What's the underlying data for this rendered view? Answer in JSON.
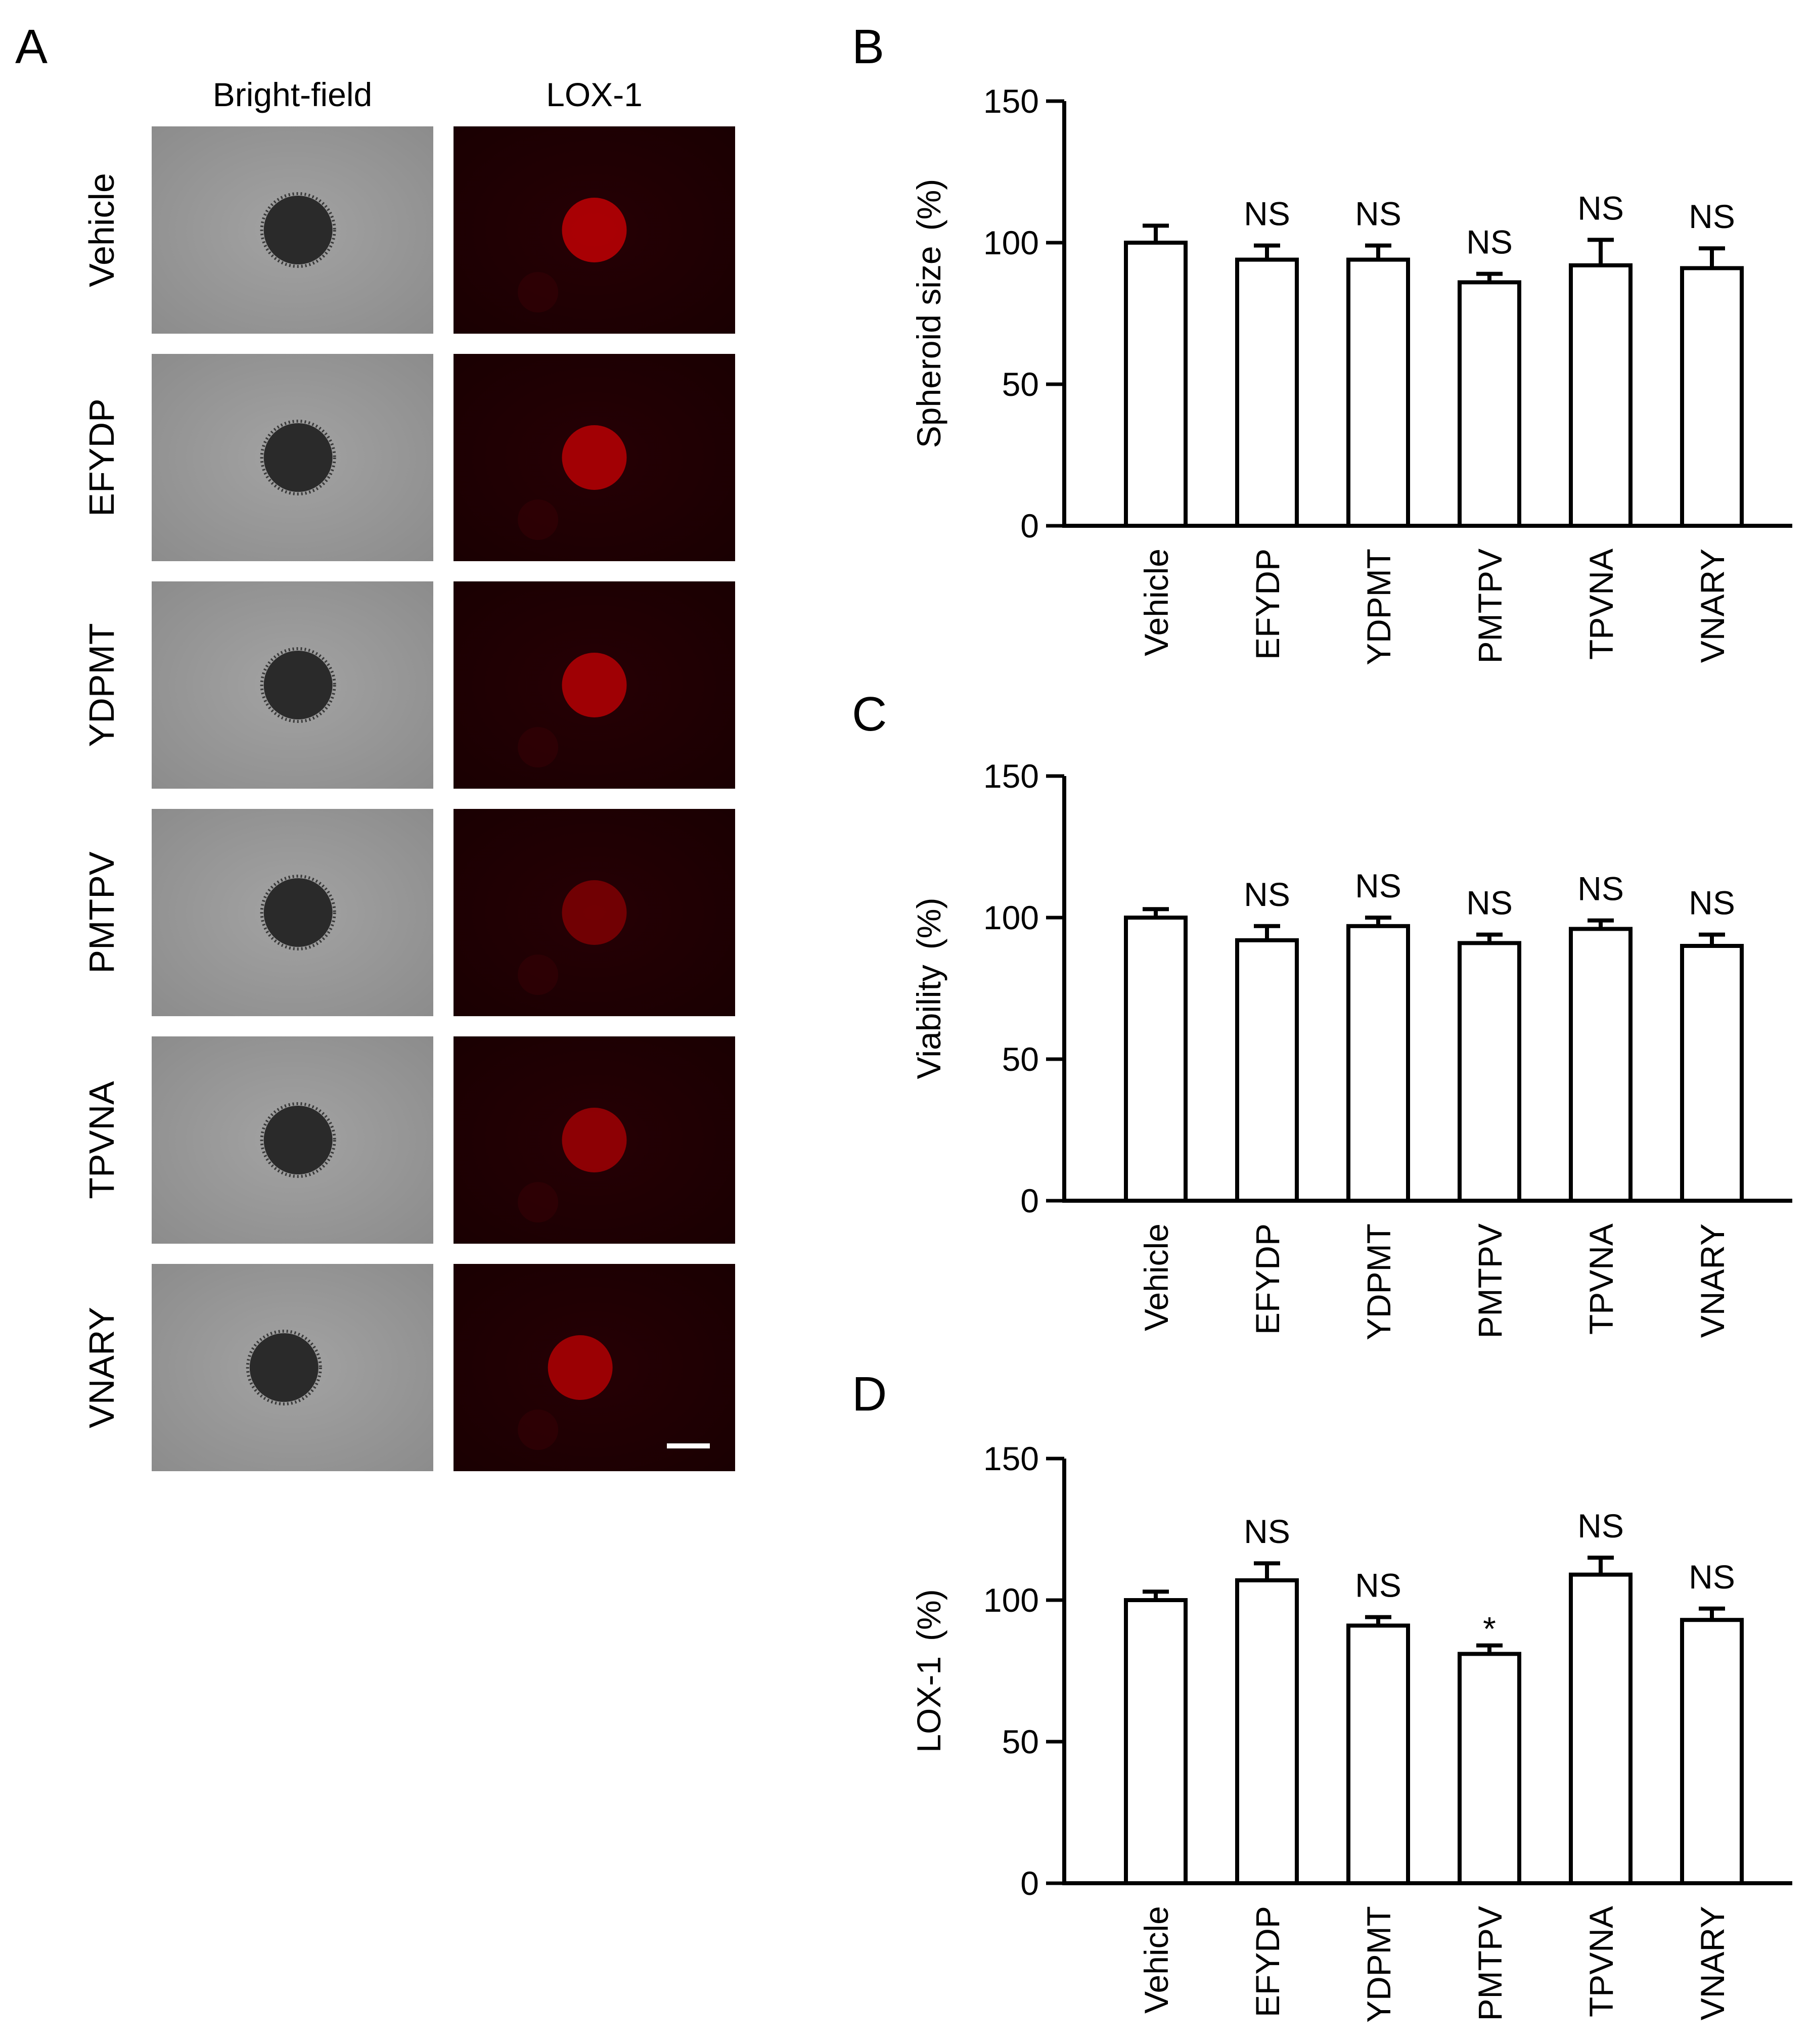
{
  "panel_a": {
    "letter": "A",
    "columns": [
      "Bright-field",
      "LOX-1"
    ],
    "rows": [
      "Vehicle",
      "EFYDP",
      "YDPMT",
      "PMTPV",
      "TPVNA",
      "VNARY"
    ],
    "brightfield_colors": {
      "background": "#8c8c8c",
      "spheroid": "#2a2a2a"
    },
    "fluorescence_colors": {
      "background": "#1a0002",
      "spheroid": "#b00004"
    },
    "spheroid_intensity": [
      0.95,
      0.9,
      0.88,
      0.55,
      0.75,
      0.85
    ],
    "scale_bar_color": "#ffffff"
  },
  "chart_data": [
    {
      "panel": "B",
      "type": "bar",
      "categories": [
        "Vehicle",
        "EFYDP",
        "YDPMT",
        "PMTPV",
        "TPVNA",
        "VNARY"
      ],
      "values": [
        100,
        94,
        94,
        86,
        92,
        91
      ],
      "errors": [
        6,
        5,
        5,
        3,
        9,
        7
      ],
      "annotations": [
        "",
        "NS",
        "NS",
        "NS",
        "NS",
        "NS"
      ],
      "ylabel": "Spheroid size",
      "ylabel_unit": "(%)",
      "ylim": [
        0,
        150
      ],
      "yticks": [
        0,
        50,
        100,
        150
      ],
      "bar_fill": "#ffffff",
      "bar_stroke": "#000000",
      "grid": false
    },
    {
      "panel": "C",
      "type": "bar",
      "categories": [
        "Vehicle",
        "EFYDP",
        "YDPMT",
        "PMTPV",
        "TPVNA",
        "VNARY"
      ],
      "values": [
        100,
        92,
        97,
        91,
        96,
        90
      ],
      "errors": [
        3,
        5,
        3,
        3,
        3,
        4
      ],
      "annotations": [
        "",
        "NS",
        "NS",
        "NS",
        "NS",
        "NS"
      ],
      "ylabel": "Viability",
      "ylabel_unit": "(%)",
      "ylim": [
        0,
        150
      ],
      "yticks": [
        0,
        50,
        100,
        150
      ],
      "bar_fill": "#ffffff",
      "bar_stroke": "#000000",
      "grid": false
    },
    {
      "panel": "D",
      "type": "bar",
      "categories": [
        "Vehicle",
        "EFYDP",
        "YDPMT",
        "PMTPV",
        "TPVNA",
        "VNARY"
      ],
      "values": [
        100,
        107,
        91,
        81,
        109,
        93
      ],
      "errors": [
        3,
        6,
        3,
        3,
        6,
        4
      ],
      "annotations": [
        "",
        "NS",
        "NS",
        "*",
        "NS",
        "NS"
      ],
      "ylabel": "LOX-1",
      "ylabel_unit": "(%)",
      "ylim": [
        0,
        150
      ],
      "yticks": [
        0,
        50,
        100,
        150
      ],
      "bar_fill": "#ffffff",
      "bar_stroke": "#000000",
      "grid": false
    }
  ]
}
